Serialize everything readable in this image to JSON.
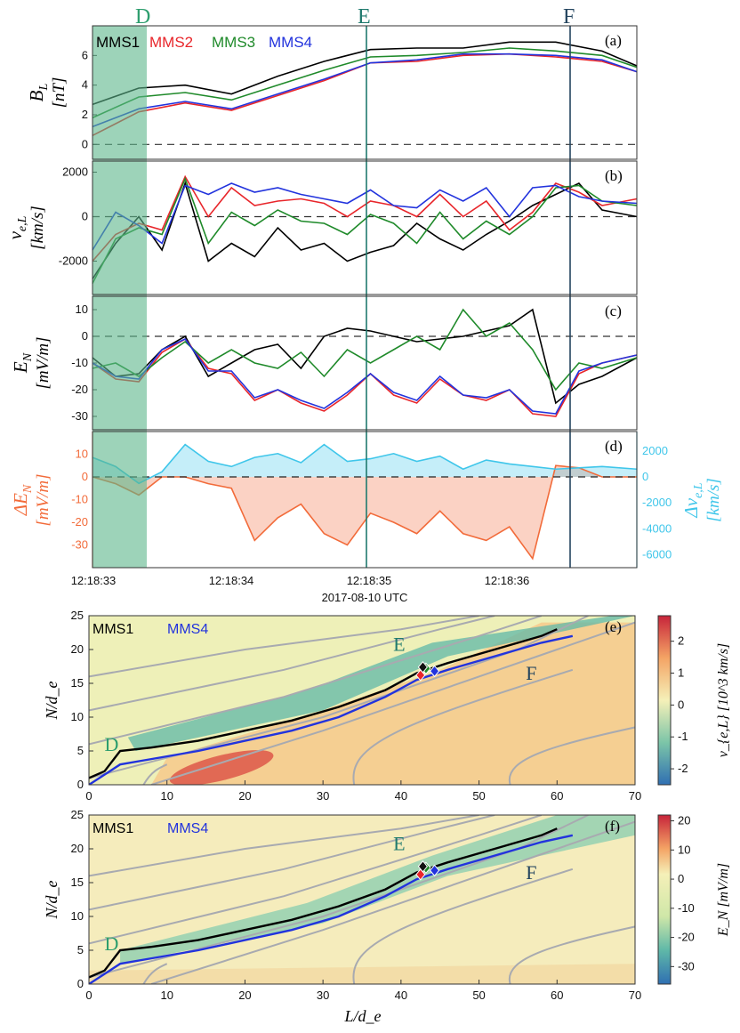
{
  "figure": {
    "time_xlabel": "2017-08-10 UTC",
    "time_ticks": [
      "12:18:33",
      "12:18:34",
      "12:18:35",
      "12:18:36"
    ],
    "markers": [
      {
        "label": "D",
        "color": "#2e9e6e"
      },
      {
        "label": "E",
        "color": "#1f7a6e"
      },
      {
        "label": "F",
        "color": "#24455f"
      }
    ],
    "legend": [
      {
        "name": "MMS1",
        "color": "#000000"
      },
      {
        "name": "MMS2",
        "color": "#e8262b"
      },
      {
        "name": "MMS3",
        "color": "#1f8a2a"
      },
      {
        "name": "MMS4",
        "color": "#2233dd"
      }
    ]
  },
  "chart_data": [
    {
      "panel": "(a)",
      "type": "line",
      "ylabel_main": "B",
      "ylabel_sub": "L",
      "ylabel_units": "[nT]",
      "ylim": [
        -1,
        8
      ],
      "yticks": [
        "0",
        "2",
        "4",
        "6"
      ],
      "x_range": [
        0,
        2.35
      ],
      "series": [
        {
          "name": "MMS1",
          "x": [
            0,
            0.2,
            0.4,
            0.6,
            0.8,
            1.0,
            1.2,
            1.4,
            1.6,
            1.8,
            2.0,
            2.2,
            2.35
          ],
          "values": [
            2.7,
            3.8,
            4.0,
            3.4,
            4.6,
            5.6,
            6.4,
            6.5,
            6.5,
            6.9,
            6.9,
            6.3,
            5.3
          ]
        },
        {
          "name": "MMS2",
          "x": [
            0,
            0.2,
            0.4,
            0.6,
            0.8,
            1.0,
            1.2,
            1.4,
            1.6,
            1.8,
            2.0,
            2.2,
            2.35
          ],
          "values": [
            0.6,
            2.2,
            2.8,
            2.3,
            3.3,
            4.3,
            5.5,
            5.6,
            6.0,
            6.1,
            5.9,
            5.6,
            4.9
          ]
        },
        {
          "name": "MMS3",
          "x": [
            0,
            0.2,
            0.4,
            0.6,
            0.8,
            1.0,
            1.2,
            1.4,
            1.6,
            1.8,
            2.0,
            2.2,
            2.35
          ],
          "values": [
            1.8,
            3.2,
            3.5,
            3.0,
            4.0,
            5.0,
            5.9,
            6.0,
            6.2,
            6.5,
            6.3,
            6.0,
            5.2
          ]
        },
        {
          "name": "MMS4",
          "x": [
            0,
            0.2,
            0.4,
            0.6,
            0.8,
            1.0,
            1.2,
            1.4,
            1.6,
            1.8,
            2.0,
            2.2,
            2.35
          ],
          "values": [
            1.2,
            2.4,
            2.9,
            2.4,
            3.4,
            4.4,
            5.5,
            5.7,
            6.1,
            6.1,
            6.0,
            5.7,
            4.9
          ]
        }
      ]
    },
    {
      "panel": "(b)",
      "type": "line",
      "ylabel_main": "v",
      "ylabel_sub": "e,L",
      "ylabel_units": "[km/s]",
      "ylim": [
        -3500,
        2500
      ],
      "yticks": [
        "2000",
        "0",
        "-2000"
      ],
      "x_range": [
        0,
        2.35
      ],
      "series": [
        {
          "name": "MMS1",
          "x": [
            0,
            0.1,
            0.2,
            0.3,
            0.4,
            0.5,
            0.6,
            0.7,
            0.8,
            0.9,
            1.0,
            1.1,
            1.2,
            1.3,
            1.4,
            1.5,
            1.6,
            1.7,
            1.8,
            1.9,
            2.0,
            2.1,
            2.2,
            2.35
          ],
          "values": [
            -2800,
            -1200,
            0,
            -1500,
            1500,
            -2000,
            -1200,
            -1800,
            -500,
            -1500,
            -1200,
            -2000,
            -1600,
            -1300,
            -300,
            -1000,
            -1500,
            -800,
            -200,
            500,
            1000,
            1500,
            300,
            0
          ]
        },
        {
          "name": "MMS2",
          "x": [
            0,
            0.1,
            0.2,
            0.3,
            0.4,
            0.5,
            0.6,
            0.7,
            0.8,
            0.9,
            1.0,
            1.1,
            1.2,
            1.3,
            1.4,
            1.5,
            1.6,
            1.7,
            1.8,
            1.9,
            2.0,
            2.1,
            2.2,
            2.35
          ],
          "values": [
            -2000,
            -800,
            -300,
            -600,
            1800,
            0,
            1300,
            500,
            700,
            800,
            600,
            0,
            700,
            500,
            0,
            1000,
            0,
            700,
            -600,
            200,
            1500,
            1100,
            500,
            800
          ]
        },
        {
          "name": "MMS3",
          "x": [
            0,
            0.1,
            0.2,
            0.3,
            0.4,
            0.5,
            0.6,
            0.7,
            0.8,
            0.9,
            1.0,
            1.1,
            1.2,
            1.3,
            1.4,
            1.5,
            1.6,
            1.7,
            1.8,
            1.9,
            2.0,
            2.1,
            2.2,
            2.35
          ],
          "values": [
            -3000,
            -1000,
            -500,
            -800,
            1700,
            -1200,
            200,
            -400,
            300,
            -200,
            -300,
            -800,
            100,
            -300,
            -1200,
            200,
            -1000,
            -200,
            -800,
            0,
            1300,
            1400,
            700,
            500
          ]
        },
        {
          "name": "MMS4",
          "x": [
            0,
            0.1,
            0.2,
            0.3,
            0.4,
            0.5,
            0.6,
            0.7,
            0.8,
            0.9,
            1.0,
            1.1,
            1.2,
            1.3,
            1.4,
            1.5,
            1.6,
            1.7,
            1.8,
            1.9,
            2.0,
            2.1,
            2.2,
            2.35
          ],
          "values": [
            -1500,
            200,
            -400,
            -1200,
            1400,
            1000,
            1500,
            1100,
            1300,
            1000,
            800,
            600,
            1200,
            500,
            400,
            1200,
            700,
            1300,
            0,
            1300,
            1400,
            900,
            700,
            600
          ]
        }
      ]
    },
    {
      "panel": "(c)",
      "type": "line",
      "ylabel_main": "E",
      "ylabel_sub": "N",
      "ylabel_units": "[mV/m]",
      "ylim": [
        -35,
        15
      ],
      "yticks": [
        "10",
        "0",
        "-10",
        "-20",
        "-30"
      ],
      "x_range": [
        0,
        2.35
      ],
      "series": [
        {
          "name": "MMS1",
          "x": [
            0,
            0.1,
            0.2,
            0.3,
            0.4,
            0.5,
            0.6,
            0.7,
            0.8,
            0.9,
            1.0,
            1.1,
            1.2,
            1.3,
            1.4,
            1.5,
            1.6,
            1.7,
            1.8,
            1.9,
            2.0,
            2.1,
            2.2,
            2.35
          ],
          "values": [
            -8,
            -15,
            -14,
            -5,
            0,
            -15,
            -10,
            -5,
            -3,
            -12,
            0,
            3,
            2,
            0,
            -2,
            -1,
            0,
            2,
            4,
            10,
            -25,
            -18,
            -15,
            -8
          ]
        },
        {
          "name": "MMS2",
          "x": [
            0,
            0.1,
            0.2,
            0.3,
            0.4,
            0.5,
            0.6,
            0.7,
            0.8,
            0.9,
            1.0,
            1.1,
            1.2,
            1.3,
            1.4,
            1.5,
            1.6,
            1.7,
            1.8,
            1.9,
            2.0,
            2.1,
            2.2,
            2.35
          ],
          "values": [
            -10,
            -16,
            -17,
            -6,
            -1,
            -12,
            -14,
            -24,
            -20,
            -25,
            -28,
            -22,
            -14,
            -22,
            -25,
            -16,
            -22,
            -24,
            -20,
            -29,
            -30,
            -14,
            -10,
            -7
          ]
        },
        {
          "name": "MMS3",
          "x": [
            0,
            0.1,
            0.2,
            0.3,
            0.4,
            0.5,
            0.6,
            0.7,
            0.8,
            0.9,
            1.0,
            1.1,
            1.2,
            1.3,
            1.4,
            1.5,
            1.6,
            1.7,
            1.8,
            1.9,
            2.0,
            2.1,
            2.2,
            2.35
          ],
          "values": [
            -12,
            -10,
            -15,
            -8,
            -2,
            -10,
            -5,
            -10,
            -12,
            -6,
            -15,
            -5,
            -10,
            -5,
            0,
            -5,
            10,
            0,
            5,
            -5,
            -20,
            -10,
            -12,
            -8
          ]
        },
        {
          "name": "MMS4",
          "x": [
            0,
            0.1,
            0.2,
            0.3,
            0.4,
            0.5,
            0.6,
            0.7,
            0.8,
            0.9,
            1.0,
            1.1,
            1.2,
            1.3,
            1.4,
            1.5,
            1.6,
            1.7,
            1.8,
            1.9,
            2.0,
            2.1,
            2.2,
            2.35
          ],
          "values": [
            -10,
            -15,
            -16,
            -5,
            -1,
            -13,
            -13,
            -23,
            -20,
            -24,
            -27,
            -21,
            -14,
            -21,
            -24,
            -15,
            -22,
            -23,
            -20,
            -28,
            -29,
            -13,
            -10,
            -7
          ]
        }
      ]
    },
    {
      "panel": "(d)",
      "type": "area",
      "ylabel_left": "ΔE",
      "ylabel_left_sub": "N",
      "ylabel_left_units": "[mV/m]",
      "ylabel_right": "Δv",
      "ylabel_right_sub": "e,L",
      "ylabel_right_units": "[km/s]",
      "ylim_left": [
        -40,
        20
      ],
      "yticks_left": [
        "10",
        "0",
        "-10",
        "-20",
        "-30"
      ],
      "ylim_right": [
        -7000,
        3500
      ],
      "yticks_right": [
        "2000",
        "0",
        "-2000",
        "-4000",
        "-6000"
      ],
      "x_range": [
        0,
        2.35
      ],
      "series": [
        {
          "name": "ΔE_N",
          "color": "#f26b3a",
          "x": [
            0,
            0.1,
            0.2,
            0.3,
            0.4,
            0.5,
            0.6,
            0.7,
            0.8,
            0.9,
            1.0,
            1.1,
            1.2,
            1.3,
            1.4,
            1.5,
            1.6,
            1.7,
            1.8,
            1.9,
            2.0,
            2.1,
            2.2,
            2.35
          ],
          "values": [
            0,
            -3,
            -8,
            0,
            0,
            -3,
            -5,
            -28,
            -18,
            -12,
            -25,
            -30,
            -16,
            -20,
            -25,
            -15,
            -25,
            -28,
            -22,
            -36,
            5,
            4,
            0,
            0
          ]
        },
        {
          "name": "Δv_e,L",
          "color": "#3fc6ea",
          "x": [
            0,
            0.1,
            0.2,
            0.3,
            0.4,
            0.5,
            0.6,
            0.7,
            0.8,
            0.9,
            1.0,
            1.1,
            1.2,
            1.3,
            1.4,
            1.5,
            1.6,
            1.7,
            1.8,
            1.9,
            2.0,
            2.1,
            2.2,
            2.35
          ],
          "values": [
            1500,
            800,
            -500,
            400,
            2500,
            1200,
            800,
            1500,
            1800,
            1100,
            2500,
            1200,
            1400,
            1800,
            1200,
            1600,
            600,
            1300,
            1000,
            800,
            600,
            700,
            800,
            600
          ]
        }
      ]
    },
    {
      "panel": "(e)",
      "type": "heatmap",
      "xlabel": "L/d_e",
      "ylabel": "N/d_e",
      "xticks": [
        "0",
        "10",
        "20",
        "30",
        "40",
        "50",
        "60",
        "70"
      ],
      "yticks": [
        "0",
        "5",
        "10",
        "15",
        "20",
        "25"
      ],
      "xlim": [
        0,
        70
      ],
      "ylim": [
        0,
        25
      ],
      "colorbar_label": "v_{e,L} [10^3 km/s]",
      "colorbar_ticks": [
        "2",
        "1",
        "0",
        "-1",
        "-2"
      ],
      "region_labels": [
        "D",
        "E",
        "F"
      ],
      "legend": [
        "MMS1",
        "MMS4"
      ],
      "trajectories": [
        {
          "name": "MMS1",
          "x": [
            0,
            2,
            4,
            8,
            14,
            20,
            26,
            32,
            38,
            42,
            46,
            52,
            58,
            60
          ],
          "values": [
            1,
            2,
            5,
            5.5,
            6.5,
            8,
            9.5,
            11.5,
            14,
            16.5,
            18,
            20,
            22,
            23
          ]
        },
        {
          "name": "MMS4",
          "x": [
            0,
            2,
            4,
            8,
            14,
            20,
            26,
            32,
            38,
            42,
            46,
            52,
            58,
            62
          ],
          "values": [
            0,
            1.5,
            3,
            3.8,
            5,
            6.5,
            8,
            10,
            13,
            15.5,
            17,
            19,
            21,
            22
          ]
        }
      ]
    },
    {
      "panel": "(f)",
      "type": "heatmap",
      "xlabel": "L/d_e",
      "ylabel": "N/d_e",
      "xticks": [
        "0",
        "10",
        "20",
        "30",
        "40",
        "50",
        "60",
        "70"
      ],
      "yticks": [
        "0",
        "5",
        "10",
        "15",
        "20",
        "25"
      ],
      "xlim": [
        0,
        70
      ],
      "ylim": [
        0,
        25
      ],
      "colorbar_label": "E_N [mV/m]",
      "colorbar_ticks": [
        "20",
        "10",
        "0",
        "-10",
        "-20",
        "-30"
      ],
      "region_labels": [
        "D",
        "E",
        "F"
      ],
      "legend": [
        "MMS1",
        "MMS4"
      ],
      "trajectories": [
        {
          "name": "MMS1",
          "x": [
            0,
            2,
            4,
            8,
            14,
            20,
            26,
            32,
            38,
            42,
            46,
            52,
            58,
            60
          ],
          "values": [
            1,
            2,
            5,
            5.5,
            6.5,
            8,
            9.5,
            11.5,
            14,
            16.5,
            18,
            20,
            22,
            23
          ]
        },
        {
          "name": "MMS4",
          "x": [
            0,
            2,
            4,
            8,
            14,
            20,
            26,
            32,
            38,
            42,
            46,
            52,
            58,
            62
          ],
          "values": [
            0,
            1.5,
            3,
            3.8,
            5,
            6.5,
            8,
            10,
            13,
            15.5,
            17,
            19,
            21,
            22
          ]
        }
      ]
    }
  ]
}
